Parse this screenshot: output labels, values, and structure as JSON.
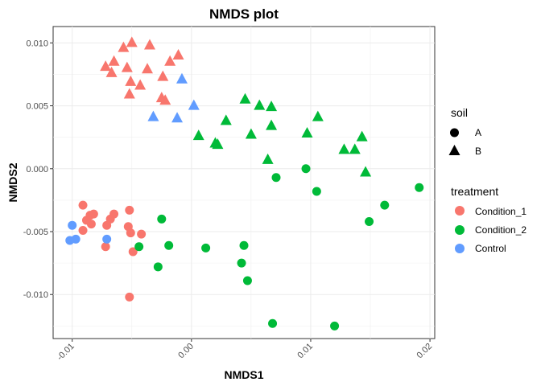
{
  "chart_data": {
    "type": "scatter",
    "title": "NMDS plot",
    "xlabel": "NMDS1",
    "ylabel": "NMDS2",
    "xlim": [
      -0.0116,
      0.0204
    ],
    "ylim": [
      -0.0135,
      0.0113
    ],
    "xticks": [
      {
        "value": -0.01,
        "label": "-0.01"
      },
      {
        "value": 0.0,
        "label": "0.00"
      },
      {
        "value": 0.01,
        "label": "0.01"
      },
      {
        "value": 0.02,
        "label": "0.02"
      }
    ],
    "yticks": [
      {
        "value": -0.01,
        "label": "-0.010"
      },
      {
        "value": -0.005,
        "label": "-0.005"
      },
      {
        "value": 0.0,
        "label": "0.000"
      },
      {
        "value": 0.005,
        "label": "0.005"
      },
      {
        "value": 0.01,
        "label": "0.010"
      }
    ],
    "grid": true,
    "legend": {
      "position": "right",
      "soil": {
        "title": "soil",
        "entries": [
          {
            "label": "A",
            "shape": "circle"
          },
          {
            "label": "B",
            "shape": "triangle"
          }
        ]
      },
      "treatment": {
        "title": "treatment",
        "entries": [
          {
            "label": "Condition_1",
            "color": "#F8766D"
          },
          {
            "label": "Condition_2",
            "color": "#00BA38"
          },
          {
            "label": "Control",
            "color": "#619CFF"
          }
        ]
      }
    },
    "series": [
      {
        "name": "Condition_1",
        "soil": "A",
        "color": "#F8766D",
        "points": [
          [
            -0.0091,
            -0.0029
          ],
          [
            -0.0088,
            -0.0041
          ],
          [
            -0.0085,
            -0.0037
          ],
          [
            -0.0082,
            -0.0036
          ],
          [
            -0.0091,
            -0.0049
          ],
          [
            -0.0084,
            -0.0044
          ],
          [
            -0.0071,
            -0.0045
          ],
          [
            -0.0068,
            -0.004
          ],
          [
            -0.0065,
            -0.0036
          ],
          [
            -0.0052,
            -0.0033
          ],
          [
            -0.0053,
            -0.0046
          ],
          [
            -0.0051,
            -0.0051
          ],
          [
            -0.0042,
            -0.0052
          ],
          [
            -0.0049,
            -0.0066
          ],
          [
            -0.0072,
            -0.0062
          ],
          [
            -0.0052,
            -0.0102
          ]
        ]
      },
      {
        "name": "Condition_1",
        "soil": "B",
        "color": "#F8766D",
        "points": [
          [
            -0.0072,
            0.0081
          ],
          [
            -0.0065,
            0.0085
          ],
          [
            -0.0057,
            0.0096
          ],
          [
            -0.005,
            0.01
          ],
          [
            -0.0035,
            0.0098
          ],
          [
            -0.0067,
            0.0076
          ],
          [
            -0.0051,
            0.0069
          ],
          [
            -0.0054,
            0.008
          ],
          [
            -0.0043,
            0.0066
          ],
          [
            -0.0052,
            0.0059
          ],
          [
            -0.0037,
            0.0079
          ],
          [
            -0.0024,
            0.0073
          ],
          [
            -0.0022,
            0.0054
          ],
          [
            -0.0018,
            0.0085
          ],
          [
            -0.0011,
            0.009
          ],
          [
            -0.0025,
            0.0056
          ]
        ]
      },
      {
        "name": "Condition_2",
        "soil": "A",
        "color": "#00BA38",
        "points": [
          [
            -0.0025,
            -0.004
          ],
          [
            -0.0044,
            -0.0062
          ],
          [
            -0.0019,
            -0.0061
          ],
          [
            -0.0028,
            -0.0078
          ],
          [
            0.0012,
            -0.0063
          ],
          [
            0.0044,
            -0.0061
          ],
          [
            0.0042,
            -0.0075
          ],
          [
            0.0047,
            -0.0089
          ],
          [
            0.0068,
            -0.0123
          ],
          [
            0.0071,
            -0.0007
          ],
          [
            0.0096,
            0.0
          ],
          [
            0.0105,
            -0.0018
          ],
          [
            0.0149,
            -0.0042
          ],
          [
            0.0162,
            -0.0029
          ],
          [
            0.0191,
            -0.0015
          ],
          [
            0.012,
            -0.0125
          ]
        ]
      },
      {
        "name": "Condition_2",
        "soil": "B",
        "color": "#00BA38",
        "points": [
          [
            0.0006,
            0.0026
          ],
          [
            0.002,
            0.002
          ],
          [
            0.0022,
            0.0019
          ],
          [
            0.0029,
            0.0038
          ],
          [
            0.0045,
            0.0055
          ],
          [
            0.0057,
            0.005
          ],
          [
            0.0067,
            0.0049
          ],
          [
            0.0067,
            0.0034
          ],
          [
            0.005,
            0.0027
          ],
          [
            0.0064,
            0.0007
          ],
          [
            0.0097,
            0.0028
          ],
          [
            0.0106,
            0.0041
          ],
          [
            0.0128,
            0.0015
          ],
          [
            0.0137,
            0.0015
          ],
          [
            0.0143,
            0.0025
          ],
          [
            0.0146,
            -0.0003
          ]
        ]
      },
      {
        "name": "Control",
        "soil": "A",
        "color": "#619CFF",
        "points": [
          [
            -0.01,
            -0.0045
          ],
          [
            -0.0102,
            -0.0057
          ],
          [
            -0.0097,
            -0.0056
          ],
          [
            -0.0071,
            -0.0056
          ]
        ]
      },
      {
        "name": "Control",
        "soil": "B",
        "color": "#619CFF",
        "points": [
          [
            -0.0032,
            0.0041
          ],
          [
            -0.0012,
            0.004
          ],
          [
            -0.0008,
            0.0071
          ],
          [
            0.0002,
            0.005
          ]
        ]
      }
    ]
  }
}
